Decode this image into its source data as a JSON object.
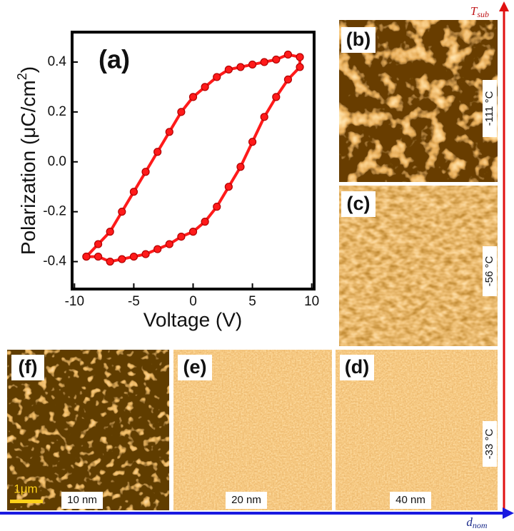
{
  "chart_data": {
    "type": "line",
    "title": "(a)",
    "xlabel": "Voltage (V)",
    "ylabel": [
      "Polarization (μC/cm",
      "2",
      ")"
    ],
    "xlim": [
      -10.2,
      10.2
    ],
    "ylim": [
      -0.51,
      0.52
    ],
    "xticks": [
      -10,
      -5,
      0,
      5,
      10
    ],
    "yticks": [
      -0.4,
      -0.2,
      {
        "value": 0,
        "label": "0.0"
      },
      0.2,
      0.4
    ],
    "series": [
      {
        "color": "#ff1a1a",
        "x": [
          -9,
          -8,
          -7,
          -6,
          -5,
          -4,
          -3,
          -2,
          -1,
          0,
          1,
          2,
          3,
          4,
          5,
          6,
          7,
          8,
          9,
          9,
          8,
          7,
          6,
          5,
          4,
          3,
          2,
          1,
          0,
          -1,
          -2,
          -3,
          -4,
          -5,
          -6,
          -7,
          -8,
          -9
        ],
        "values": [
          -0.38,
          -0.33,
          -0.28,
          -0.2,
          -0.12,
          -0.04,
          0.04,
          0.12,
          0.2,
          0.26,
          0.3,
          0.34,
          0.37,
          0.38,
          0.39,
          0.4,
          0.41,
          0.43,
          0.42,
          0.38,
          0.33,
          0.26,
          0.18,
          0.08,
          -0.02,
          -0.1,
          -0.18,
          -0.24,
          -0.28,
          -0.3,
          -0.33,
          -0.35,
          -0.37,
          -0.38,
          -0.39,
          -0.4,
          -0.38,
          -0.38
        ]
      }
    ]
  },
  "panels": [
    {
      "label": "(b)",
      "temperature": "-111 °C"
    },
    {
      "label": "(c)",
      "temperature": "-56 °C"
    },
    {
      "label": "(d)",
      "thickness": "40 nm",
      "temperature": "-33 °C"
    },
    {
      "label": "(e)",
      "thickness": "20 nm"
    },
    {
      "label": "(f)",
      "thickness": "10 nm",
      "scale_bar": "1μm"
    }
  ],
  "axes": {
    "vertical": [
      "T",
      "sub"
    ],
    "horizontal": [
      "d",
      "nom"
    ]
  }
}
